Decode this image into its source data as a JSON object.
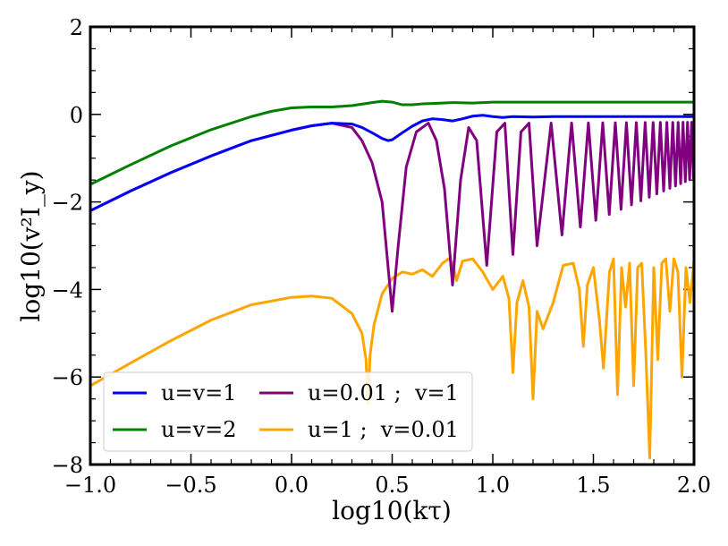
{
  "chart_data": {
    "type": "line",
    "title": "",
    "xlabel": "log10(kτ)",
    "ylabel": "log10(v²I_y)",
    "xlim": [
      -1.0,
      2.0
    ],
    "ylim": [
      -8,
      2
    ],
    "x_ticks": [
      -1.0,
      -0.5,
      0.0,
      0.5,
      1.0,
      1.5,
      2.0
    ],
    "x_tick_labels": [
      "−1.0",
      "−0.5",
      "0.0",
      "0.5",
      "1.0",
      "1.5",
      "2.0"
    ],
    "y_ticks": [
      -8,
      -6,
      -4,
      -2,
      0,
      2
    ],
    "y_tick_labels": [
      "−8",
      "−6",
      "−4",
      "−2",
      "0",
      "2"
    ],
    "legend_position": "lower-left",
    "series": [
      {
        "name": "u=v=1",
        "color": "#0000ff",
        "x": [
          -1.0,
          -0.8,
          -0.6,
          -0.4,
          -0.2,
          0.0,
          0.1,
          0.2,
          0.3,
          0.35,
          0.4,
          0.45,
          0.48,
          0.5,
          0.55,
          0.6,
          0.65,
          0.7,
          0.75,
          0.8,
          0.85,
          0.9,
          0.95,
          1.0,
          1.05,
          1.1,
          1.2,
          1.3,
          1.4,
          1.5,
          1.6,
          1.7,
          1.8,
          1.9,
          2.0
        ],
        "y": [
          -2.2,
          -1.75,
          -1.33,
          -0.95,
          -0.6,
          -0.36,
          -0.26,
          -0.2,
          -0.22,
          -0.3,
          -0.42,
          -0.55,
          -0.6,
          -0.58,
          -0.42,
          -0.27,
          -0.15,
          -0.1,
          -0.12,
          -0.15,
          -0.1,
          -0.04,
          -0.02,
          -0.05,
          -0.07,
          -0.05,
          -0.06,
          -0.05,
          -0.05,
          -0.05,
          -0.05,
          -0.05,
          -0.05,
          -0.05,
          -0.05
        ]
      },
      {
        "name": "u=v=2",
        "color": "#008000",
        "x": [
          -1.0,
          -0.8,
          -0.6,
          -0.4,
          -0.2,
          -0.1,
          0.0,
          0.1,
          0.2,
          0.3,
          0.4,
          0.45,
          0.5,
          0.55,
          0.6,
          0.65,
          0.7,
          0.8,
          0.9,
          1.0,
          1.2,
          1.4,
          1.6,
          1.8,
          2.0
        ],
        "y": [
          -1.6,
          -1.15,
          -0.72,
          -0.35,
          -0.05,
          0.07,
          0.15,
          0.17,
          0.17,
          0.2,
          0.27,
          0.3,
          0.28,
          0.22,
          0.22,
          0.24,
          0.25,
          0.27,
          0.26,
          0.28,
          0.28,
          0.28,
          0.28,
          0.28,
          0.28
        ]
      },
      {
        "name": "u=0.01 ;  v=1",
        "color": "#800080",
        "x": [
          -1.0,
          -0.8,
          -0.6,
          -0.4,
          -0.2,
          0.0,
          0.1,
          0.2,
          0.3,
          0.35,
          0.4,
          0.45,
          0.48,
          0.5,
          0.53,
          0.57,
          0.62,
          0.68,
          0.72,
          0.76,
          0.8,
          0.84,
          0.88,
          0.92,
          0.97,
          1.02,
          1.06,
          1.1,
          1.14,
          1.18,
          1.22
        ],
        "y": [
          -2.2,
          -1.75,
          -1.33,
          -0.95,
          -0.6,
          -0.36,
          -0.26,
          -0.2,
          -0.3,
          -0.6,
          -1.1,
          -2.0,
          -3.5,
          -4.5,
          -3.0,
          -1.2,
          -0.4,
          -0.2,
          -0.6,
          -1.7,
          -3.9,
          -1.5,
          -0.3,
          -0.6,
          -3.45,
          -0.4,
          -0.2,
          -3.2,
          -0.4,
          -0.2,
          -3.0
        ],
        "oscillation": {
          "from_x": 1.22,
          "to_x": 2.0,
          "period_start": 0.14,
          "period_end": 0.018,
          "upper_start": -0.2,
          "upper_end": -0.18,
          "lower_start": -3.0,
          "lower_end": -1.45
        }
      },
      {
        "name": "u=1 ;  v=0.01",
        "color": "#ffa500",
        "x": [
          -1.0,
          -0.8,
          -0.6,
          -0.4,
          -0.2,
          0.0,
          0.1,
          0.2,
          0.3,
          0.35,
          0.37,
          0.38,
          0.39,
          0.41,
          0.45,
          0.5,
          0.55,
          0.6,
          0.65,
          0.7,
          0.75,
          0.78,
          0.8,
          0.82,
          0.85,
          0.9,
          0.95,
          1.0,
          1.05,
          1.08,
          1.1,
          1.12,
          1.15,
          1.18,
          1.2,
          1.22,
          1.25,
          1.3,
          1.35,
          1.4,
          1.43,
          1.45,
          1.47,
          1.5,
          1.53,
          1.55,
          1.58,
          1.6,
          1.62,
          1.64,
          1.66,
          1.68,
          1.7,
          1.72,
          1.74,
          1.76,
          1.78,
          1.8,
          1.82,
          1.84,
          1.86,
          1.88,
          1.9,
          1.92,
          1.94,
          1.96,
          1.98,
          2.0
        ],
        "y": [
          -6.2,
          -5.68,
          -5.17,
          -4.7,
          -4.35,
          -4.18,
          -4.15,
          -4.2,
          -4.55,
          -5.0,
          -5.6,
          -6.6,
          -5.5,
          -4.8,
          -4.1,
          -3.75,
          -3.6,
          -3.65,
          -3.55,
          -3.7,
          -3.4,
          -3.3,
          -3.4,
          -3.8,
          -3.35,
          -3.3,
          -3.6,
          -4.0,
          -3.7,
          -4.2,
          -5.9,
          -4.3,
          -3.8,
          -4.4,
          -6.5,
          -4.5,
          -4.9,
          -4.3,
          -3.45,
          -3.4,
          -4.0,
          -5.3,
          -3.9,
          -3.5,
          -4.7,
          -5.8,
          -3.6,
          -3.3,
          -6.4,
          -3.5,
          -4.4,
          -3.4,
          -6.2,
          -3.5,
          -3.4,
          -5.4,
          -7.85,
          -3.5,
          -5.6,
          -3.4,
          -3.3,
          -4.5,
          -3.3,
          -3.6,
          -6.0,
          -3.5,
          -4.3,
          -3.35
        ]
      }
    ]
  }
}
